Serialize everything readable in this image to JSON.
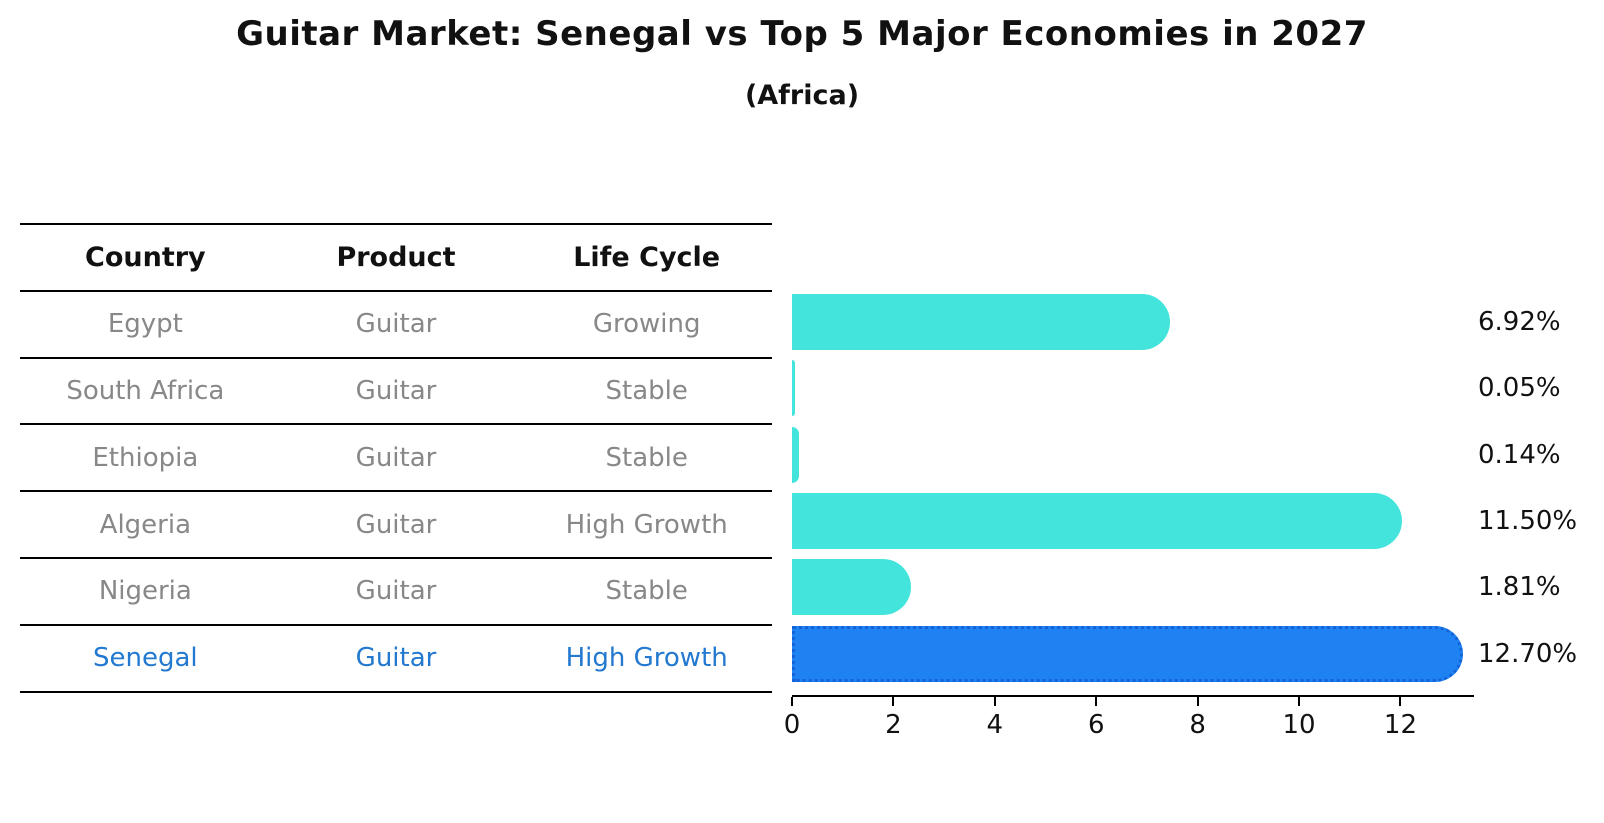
{
  "page": {
    "title": "Guitar Market: Senegal vs Top 5 Major Economies in 2027",
    "subtitle": "(Africa)",
    "background": "#ffffff"
  },
  "table": {
    "headers": {
      "country": "Country",
      "product": "Product",
      "life_cycle": "Life Cycle"
    },
    "rows": [
      {
        "country": "Egypt",
        "product": "Guitar",
        "life_cycle": "Growing",
        "highlighted": false
      },
      {
        "country": "South Africa",
        "product": "Guitar",
        "life_cycle": "Stable",
        "highlighted": false
      },
      {
        "country": "Ethiopia",
        "product": "Guitar",
        "life_cycle": "Stable",
        "highlighted": false
      },
      {
        "country": "Algeria",
        "product": "Guitar",
        "life_cycle": "High Growth",
        "highlighted": false
      },
      {
        "country": "Nigeria",
        "product": "Guitar",
        "life_cycle": "Stable",
        "highlighted": false
      },
      {
        "country": "Senegal",
        "product": "Guitar",
        "life_cycle": "High Growth",
        "highlighted": true
      }
    ],
    "colors": {
      "header_text": "#111111",
      "row_text": "#888888",
      "highlight_text": "#2379CF",
      "line": "#000000"
    }
  },
  "chart_data": {
    "type": "bar",
    "orientation": "horizontal",
    "title": "Guitar Market: Senegal vs Top 5 Major Economies in 2027",
    "subtitle": "(Africa)",
    "categories": [
      "Egypt",
      "South Africa",
      "Ethiopia",
      "Algeria",
      "Nigeria",
      "Senegal"
    ],
    "values": [
      6.92,
      0.05,
      0.14,
      11.5,
      1.81,
      12.7
    ],
    "value_labels": [
      "6.92%",
      "0.05%",
      "0.14%",
      "11.50%",
      "1.81%",
      "12.70%"
    ],
    "unit": "%",
    "xticks": [
      0,
      2,
      4,
      6,
      8,
      10,
      12
    ],
    "xlim": [
      0,
      13.45
    ],
    "grid": false,
    "legend": false,
    "highlight_index": 5,
    "colors": {
      "bar": "#43E4DC",
      "highlight_fill": "#1E82F2",
      "highlight_border": "#1463D8"
    }
  }
}
